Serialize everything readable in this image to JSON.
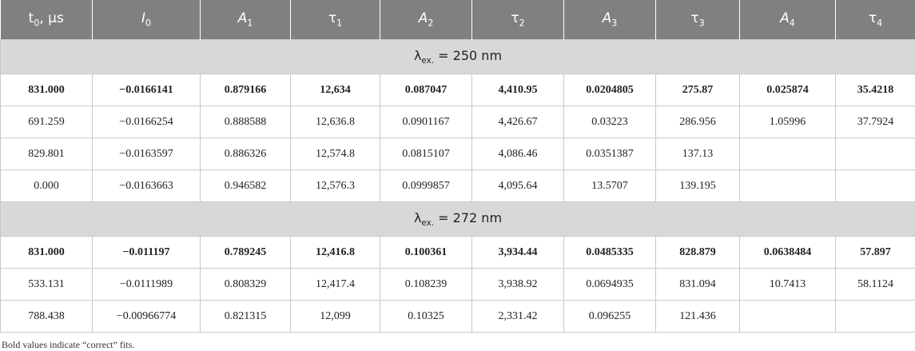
{
  "table": {
    "columns": [
      {
        "symbol": "t",
        "sub": "0",
        "suffix": ", μs",
        "italic": false
      },
      {
        "symbol": "I",
        "sub": "0",
        "italic": true
      },
      {
        "symbol": "A",
        "sub": "1",
        "italic": true
      },
      {
        "symbol": "τ",
        "sub": "1",
        "italic": false
      },
      {
        "symbol": "A",
        "sub": "2",
        "italic": true
      },
      {
        "symbol": "τ",
        "sub": "2",
        "italic": false
      },
      {
        "symbol": "A",
        "sub": "3",
        "italic": true
      },
      {
        "symbol": "τ",
        "sub": "3",
        "italic": false
      },
      {
        "symbol": "A",
        "sub": "4",
        "italic": true
      },
      {
        "symbol": "τ",
        "sub": "4",
        "italic": false
      }
    ],
    "sections": [
      {
        "label": {
          "symbol": "λ",
          "sub": "ex.",
          "suffix": " = 250 nm"
        },
        "rows": [
          {
            "bold": true,
            "cells": [
              "831.000",
              "−0.0166141",
              "0.879166",
              "12,634",
              "0.087047",
              "4,410.95",
              "0.0204805",
              "275.87",
              "0.025874",
              "35.4218"
            ]
          },
          {
            "bold": false,
            "cells": [
              "691.259",
              "−0.0166254",
              "0.888588",
              "12,636.8",
              "0.0901167",
              "4,426.67",
              "0.03223",
              "286.956",
              "1.05996",
              "37.7924"
            ]
          },
          {
            "bold": false,
            "cells": [
              "829.801",
              "−0.0163597",
              "0.886326",
              "12,574.8",
              "0.0815107",
              "4,086.46",
              "0.0351387",
              "137.13",
              null,
              null
            ]
          },
          {
            "bold": false,
            "cells": [
              "0.000",
              "−0.0163663",
              "0.946582",
              "12,576.3",
              "0.0999857",
              "4,095.64",
              "13.5707",
              "139.195",
              null,
              null
            ]
          }
        ]
      },
      {
        "label": {
          "symbol": "λ",
          "sub": "ex.",
          "suffix": " = 272 nm"
        },
        "rows": [
          {
            "bold": true,
            "cells": [
              "831.000",
              "−0.011197",
              "0.789245",
              "12,416.8",
              "0.100361",
              "3,934.44",
              "0.0485335",
              "828.879",
              "0.0638484",
              "57.897"
            ]
          },
          {
            "bold": false,
            "cells": [
              "533.131",
              "−0.0111989",
              "0.808329",
              "12,417.4",
              "0.108239",
              "3,938.92",
              "0.0694935",
              "831.094",
              "10.7413",
              "58.1124"
            ]
          },
          {
            "bold": false,
            "cells": [
              "788.438",
              "−0.00966774",
              "0.821315",
              "12,099",
              "0.10325",
              "2,331.42",
              "0.096255",
              "121.436",
              null,
              null
            ]
          }
        ]
      }
    ],
    "footnote": "Bold values indicate “correct” fits."
  }
}
